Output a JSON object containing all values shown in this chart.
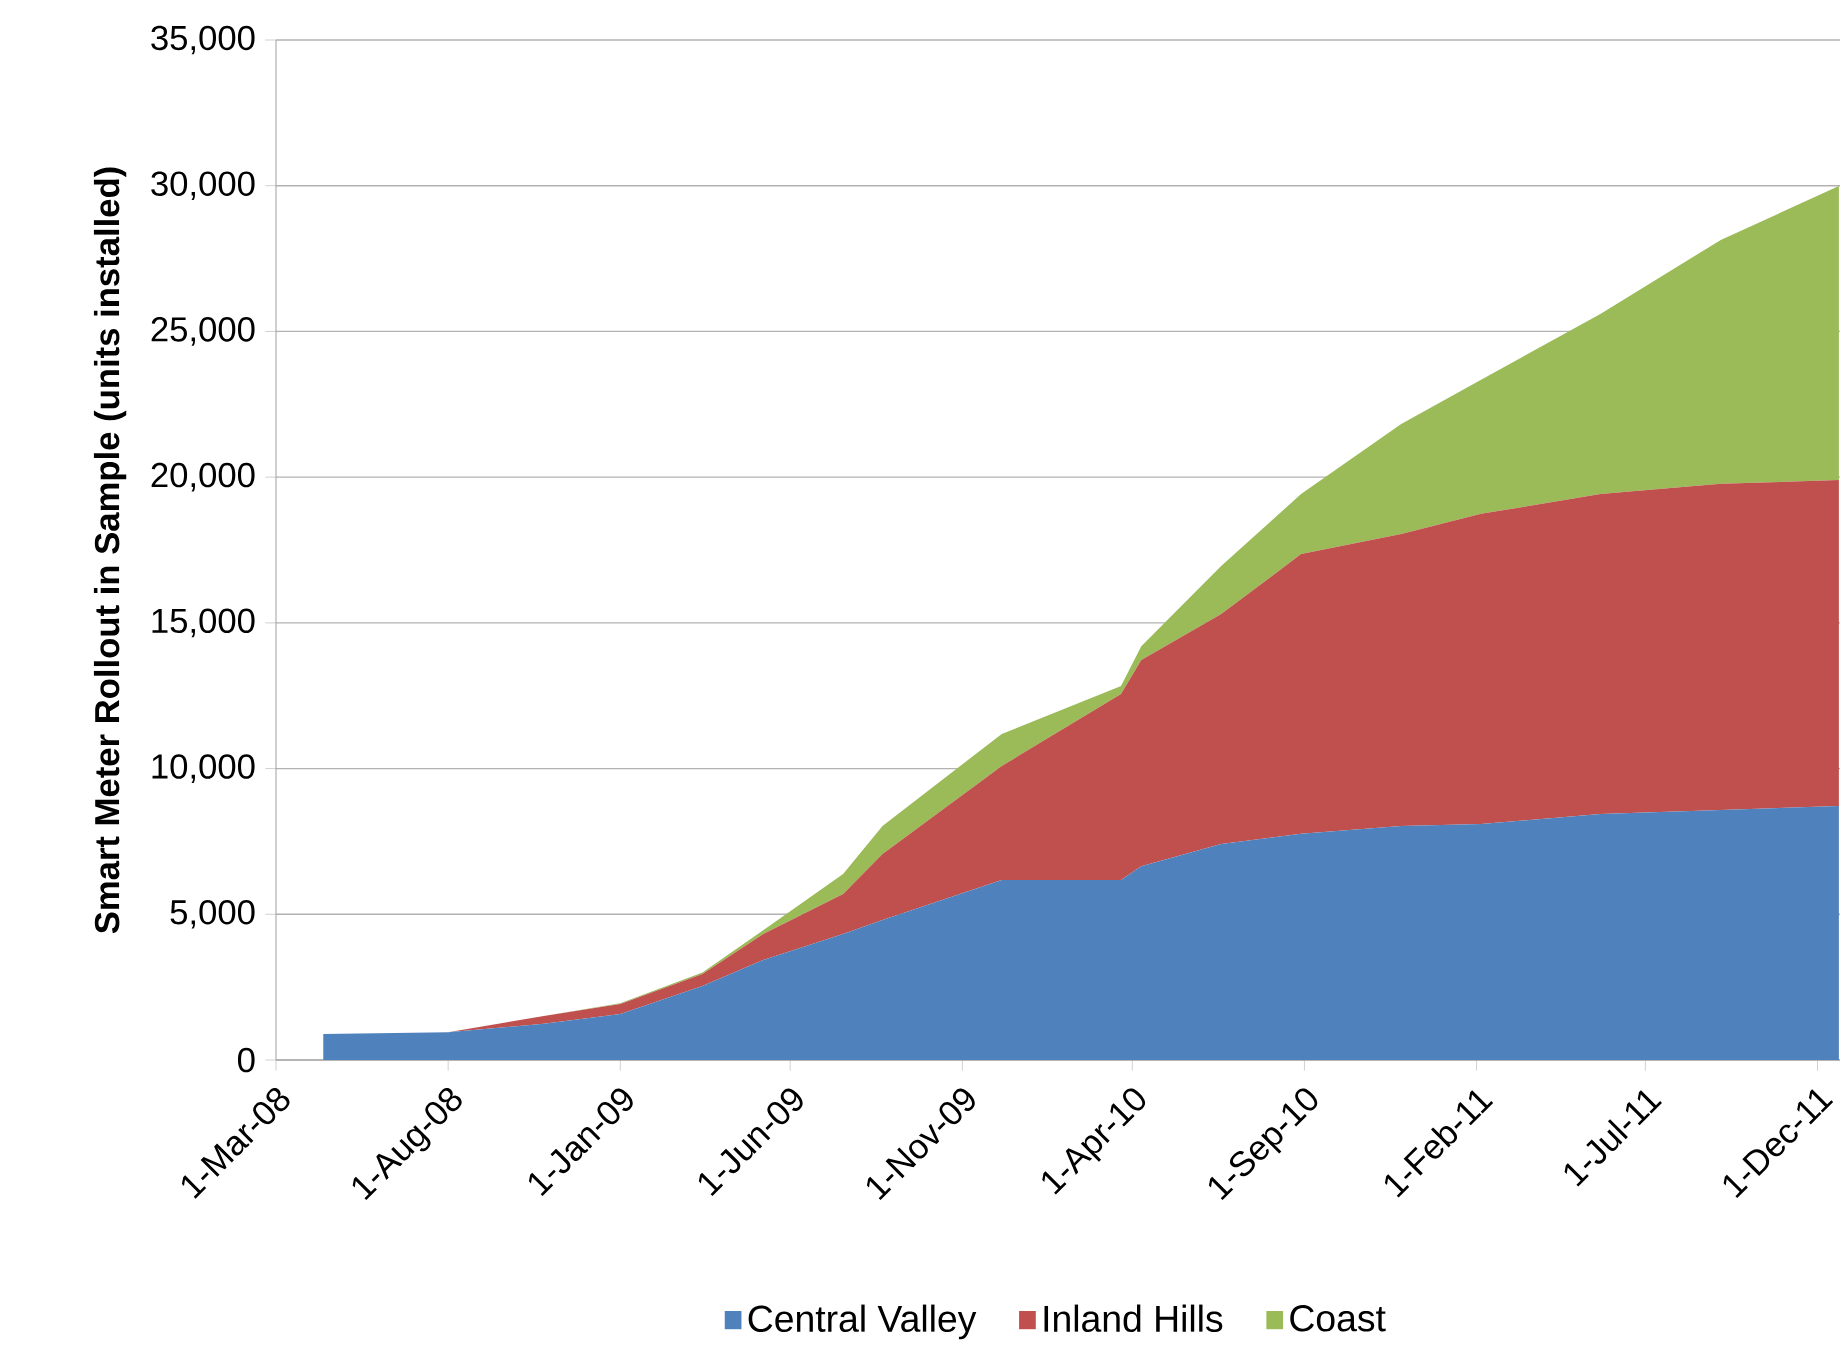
{
  "chart_data": {
    "type": "area",
    "stacked": true,
    "ylabel": "Smart Meter Rollout in Sample (units installed)",
    "x": [
      "2008-04-12",
      "2008-08-01",
      "2008-10-25",
      "2009-01-01",
      "2009-03-15",
      "2009-05-08",
      "2009-07-18",
      "2009-08-22",
      "2009-12-06",
      "2010-03-22",
      "2010-04-09",
      "2010-06-19",
      "2010-08-29",
      "2010-11-26",
      "2011-02-05",
      "2011-05-22",
      "2011-09-06",
      "2011-12-20"
    ],
    "series": [
      {
        "name": "Central Valley",
        "color": "#4f81bd",
        "values": [
          890,
          950,
          1240,
          1580,
          2540,
          3430,
          4320,
          4800,
          6180,
          6180,
          6650,
          7410,
          7760,
          8030,
          8100,
          8440,
          8580,
          8720
        ]
      },
      {
        "name": "Inland Hills",
        "color": "#c0504d",
        "values": [
          0,
          0,
          270,
          340,
          410,
          890,
          1380,
          2270,
          3910,
          6380,
          7080,
          7890,
          9600,
          10020,
          10640,
          10980,
          11190,
          11180
        ]
      },
      {
        "name": "Coast",
        "color": "#9bbb59",
        "values": [
          0,
          0,
          0,
          30,
          50,
          130,
          680,
          960,
          1100,
          270,
          470,
          1650,
          2060,
          3770,
          4600,
          6180,
          8370,
          10090
        ]
      }
    ],
    "xlim": [
      "2008-03-01",
      "2011-12-21"
    ],
    "xticks": [
      {
        "value": "2008-03-01",
        "label": "1-Mar-08"
      },
      {
        "value": "2008-08-01",
        "label": "1-Aug-08"
      },
      {
        "value": "2009-01-01",
        "label": "1-Jan-09"
      },
      {
        "value": "2009-06-01",
        "label": "1-Jun-09"
      },
      {
        "value": "2009-11-01",
        "label": "1-Nov-09"
      },
      {
        "value": "2010-04-01",
        "label": "1-Apr-10"
      },
      {
        "value": "2010-09-01",
        "label": "1-Sep-10"
      },
      {
        "value": "2011-02-01",
        "label": "1-Feb-11"
      },
      {
        "value": "2011-07-01",
        "label": "1-Jul-11"
      },
      {
        "value": "2011-12-01",
        "label": "1-Dec-11"
      }
    ],
    "ylim": [
      0,
      35000
    ],
    "yticks": [
      0,
      {
        "value": 5000,
        "label": "5,000"
      },
      {
        "value": 10000,
        "label": "10,000"
      },
      {
        "value": 15000,
        "label": "15,000"
      },
      {
        "value": 20000,
        "label": "20,000"
      },
      {
        "value": 25000,
        "label": "25,000"
      },
      {
        "value": 30000,
        "label": "30,000"
      },
      {
        "value": 35000,
        "label": "35,000"
      }
    ],
    "grid": "y",
    "legend": "bottom"
  }
}
